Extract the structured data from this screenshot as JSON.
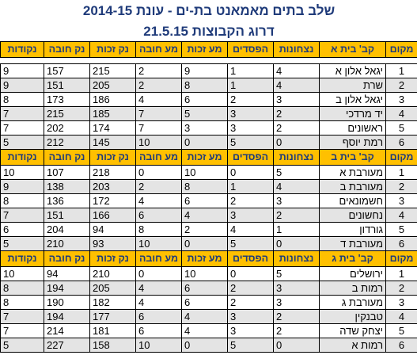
{
  "title": {
    "line1": "שלב בתים מאמאנט בת-ים -  עונת 2014-15",
    "line2": "דרוג הקבוצות   21.5.15"
  },
  "groups": [
    {
      "header": [
        "מקום",
        "קב' בית א",
        "נצחונות",
        "הפסדים",
        "מע זכות",
        "מע חובה",
        "נק זכות",
        "נק חובה",
        "נקודות"
      ],
      "rows": [
        [
          "1",
          "יגאל אלון א",
          "4",
          "1",
          "9",
          "2",
          "215",
          "157",
          "9"
        ],
        [
          "2",
          "שרת",
          "4",
          "1",
          "8",
          "2",
          "205",
          "151",
          "9"
        ],
        [
          "3",
          "יגאל אלון ב",
          "3",
          "2",
          "6",
          "4",
          "186",
          "173",
          "8"
        ],
        [
          "4",
          "יד מרדכי",
          "2",
          "3",
          "5",
          "7",
          "185",
          "215",
          "7"
        ],
        [
          "5",
          "ראשונים",
          "2",
          "3",
          "3",
          "7",
          "174",
          "202",
          "7"
        ],
        [
          "6",
          "רמת יוסף",
          "0",
          "5",
          "0",
          "10",
          "145",
          "212",
          "5"
        ]
      ]
    },
    {
      "header": [
        "מקום",
        "קב' בית ב",
        "נצחונות",
        "הפסדים",
        "מע זכות",
        "מע חובה",
        "נק זכות",
        "נק חובה",
        "נקודות"
      ],
      "rows": [
        [
          "1",
          "מעורבת א",
          "5",
          "0",
          "10",
          "0",
          "218",
          "107",
          "10"
        ],
        [
          "2",
          "מעורבת ב",
          "4",
          "1",
          "8",
          "2",
          "203",
          "138",
          "9"
        ],
        [
          "3",
          "חשמונאים",
          "3",
          "2",
          "6",
          "4",
          "172",
          "136",
          "8"
        ],
        [
          "4",
          "נחשונים",
          "2",
          "3",
          "4",
          "6",
          "166",
          "151",
          "7"
        ],
        [
          "5",
          "גורדון",
          "1",
          "4",
          "2",
          "8",
          "94",
          "204",
          "6"
        ],
        [
          "6",
          "מעורבת ד",
          "0",
          "5",
          "0",
          "10",
          "93",
          "210",
          "5"
        ]
      ]
    },
    {
      "header": [
        "מקום",
        "קב' בית ג",
        "נצחונות",
        "הפסדים",
        "מע זכות",
        "מע חובה",
        "נק זכות",
        "נק חובה",
        "נקודות"
      ],
      "rows": [
        [
          "1",
          "ירושלים",
          "5",
          "0",
          "10",
          "0",
          "210",
          "94",
          "10"
        ],
        [
          "2",
          "רמות ב",
          "3",
          "2",
          "6",
          "4",
          "205",
          "194",
          "8"
        ],
        [
          "3",
          "מעורבת ג",
          "3",
          "2",
          "6",
          "4",
          "182",
          "190",
          "8"
        ],
        [
          "4",
          "טבנקין",
          "2",
          "3",
          "4",
          "6",
          "177",
          "194",
          "7"
        ],
        [
          "5",
          "יצחק שדה",
          "2",
          "3",
          "4",
          "6",
          "181",
          "214",
          "7"
        ],
        [
          "6",
          "רמות א",
          "0",
          "5",
          "0",
          "10",
          "158",
          "227",
          "5"
        ]
      ]
    }
  ]
}
